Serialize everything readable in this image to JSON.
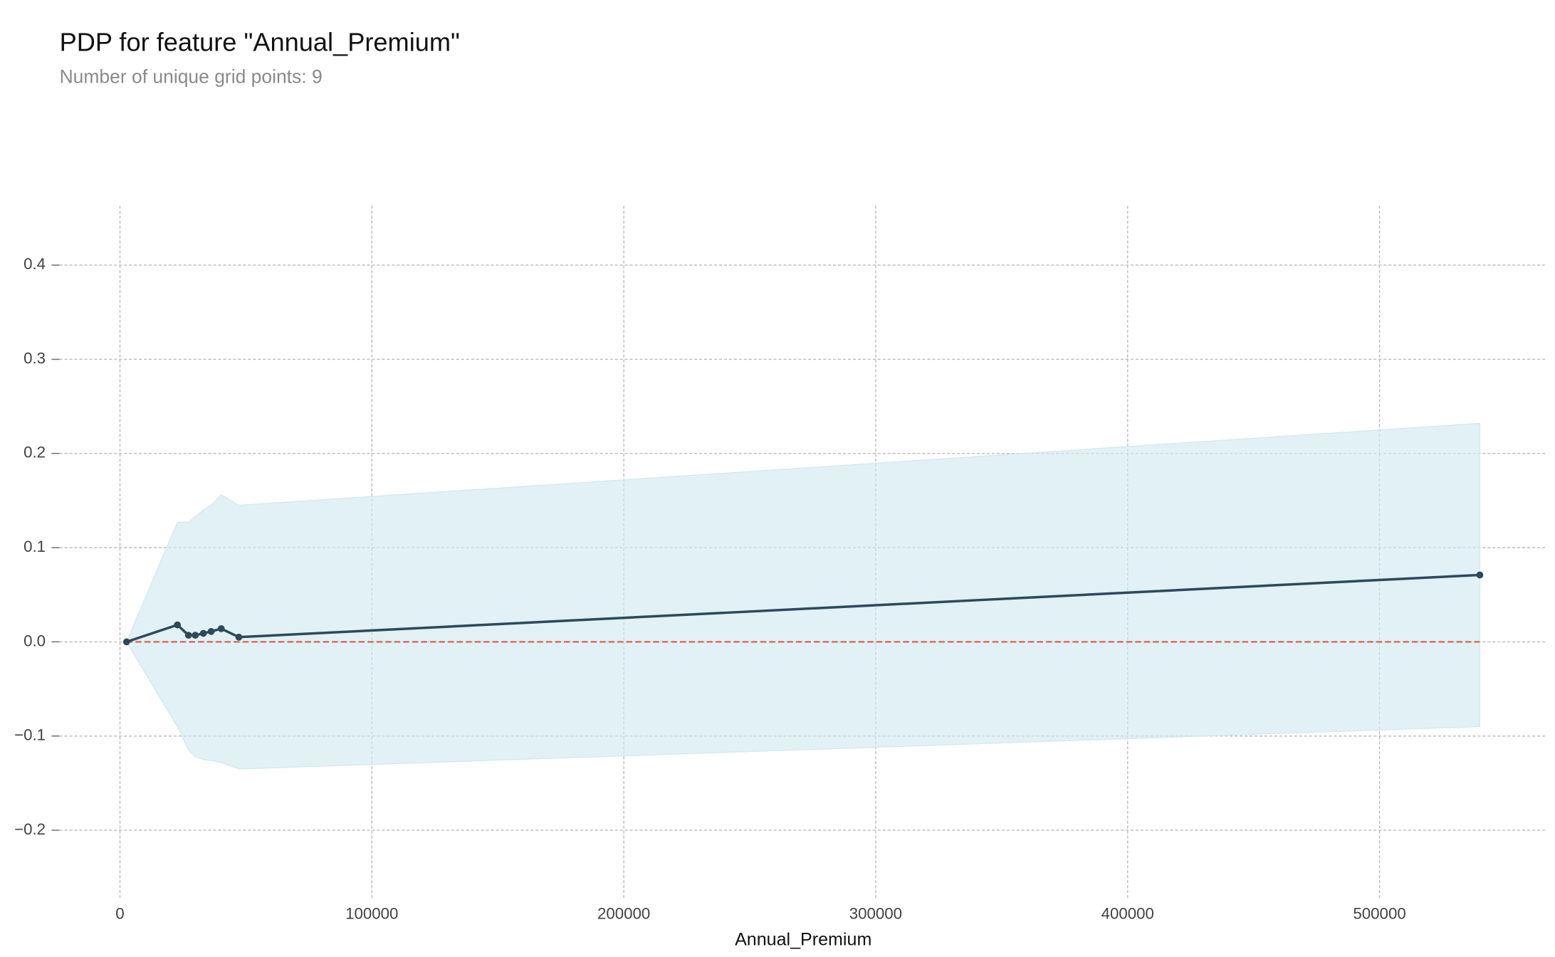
{
  "chart_data": {
    "type": "line",
    "title": "PDP for feature \"Annual_Premium\"",
    "subtitle": "Number of unique grid points: 9",
    "x_label": "Annual_Premium",
    "x": [
      2630,
      22800,
      27200,
      29900,
      33100,
      36200,
      40200,
      47200,
      539800
    ],
    "series": [
      {
        "color": "#2b4a5a",
        "values": [
          0,
          0.018,
          0.007,
          0.007,
          0.009,
          0.011,
          0.014,
          0.005,
          0.071
        ],
        "upper": [
          0,
          0.127,
          0.127,
          0.133,
          0.14,
          0.145,
          0.156,
          0.145,
          0.232
        ],
        "lower": [
          0,
          -0.09,
          -0.115,
          -0.122,
          -0.125,
          -0.126,
          -0.128,
          -0.135,
          -0.09
        ],
        "band_color": "#d3eaf0"
      }
    ],
    "baseline": 0,
    "baseline_color": "#e0583a",
    "xlim": [
      -24000,
      566500
    ],
    "ylim": [
      -0.272,
      0.463
    ],
    "xticks": [
      0,
      100000,
      200000,
      300000,
      400000,
      500000
    ],
    "yticks": [
      {
        "value": -0.2,
        "label": "−0.2"
      },
      {
        "value": -0.1,
        "label": "−0.1"
      },
      {
        "value": 0,
        "label": "0.0"
      },
      0.1,
      0.2,
      0.3,
      0.4
    ],
    "grid": true
  }
}
